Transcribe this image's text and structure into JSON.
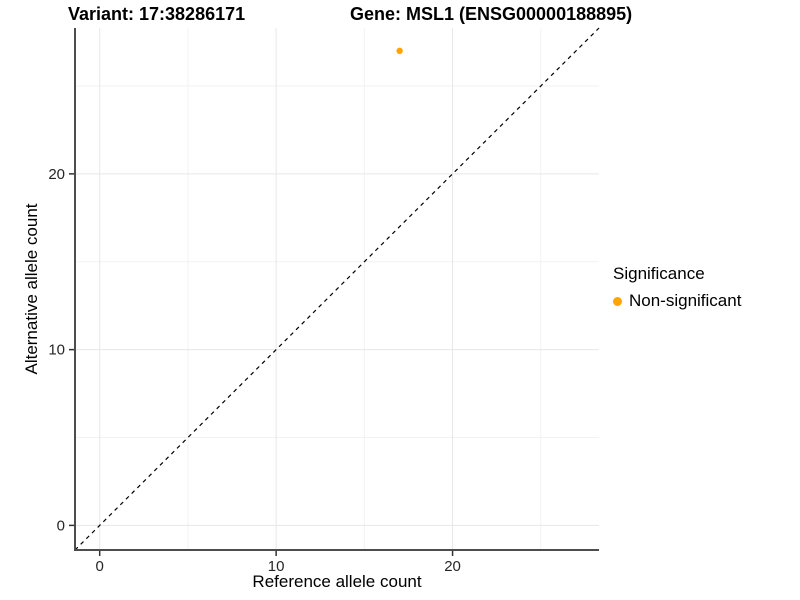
{
  "titles": {
    "variant": "Variant: 17:38286171",
    "gene": "Gene: MSL1 (ENSG00000188895)"
  },
  "axes": {
    "x_label": "Reference allele count",
    "y_label": "Alternative allele count"
  },
  "legend": {
    "title": "Significance",
    "items": [
      {
        "label": "Non-significant",
        "color": "#FFA500"
      }
    ]
  },
  "colors": {
    "point": "#FFA500",
    "grid_major": "#E7E7E7",
    "grid_minor": "#F2F2F2",
    "axis_line": "#4d4d4d",
    "tick": "#333333",
    "tick_label": "#262626",
    "diagonal": "#000000"
  },
  "chart_data": {
    "type": "scatter",
    "title": "Variant: 17:38286171 | Gene: MSL1 (ENSG00000188895)",
    "xlabel": "Reference allele count",
    "ylabel": "Alternative allele count",
    "xlim": [
      -1.4,
      28.3
    ],
    "ylim": [
      -1.4,
      28.3
    ],
    "x_ticks": [
      0,
      10,
      20
    ],
    "y_ticks": [
      0,
      10,
      20
    ],
    "x_minor_ticks": [
      5,
      15,
      25
    ],
    "y_minor_ticks": [
      5,
      15,
      25
    ],
    "grid": true,
    "legend_position": "right",
    "series": [
      {
        "name": "Non-significant",
        "color": "#FFA500",
        "points": [
          {
            "x": 17,
            "y": 27
          }
        ]
      }
    ],
    "reference_line": {
      "type": "identity",
      "equation": "y = x",
      "style": "dashed"
    }
  }
}
